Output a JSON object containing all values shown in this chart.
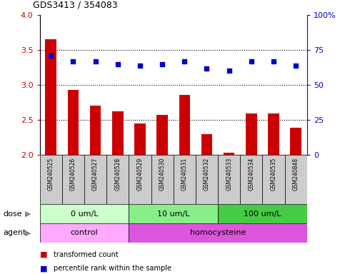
{
  "title": "GDS3413 / 354083",
  "samples": [
    "GSM240525",
    "GSM240526",
    "GSM240527",
    "GSM240528",
    "GSM240529",
    "GSM240530",
    "GSM240531",
    "GSM240532",
    "GSM240533",
    "GSM240534",
    "GSM240535",
    "GSM240848"
  ],
  "bar_values": [
    3.65,
    2.93,
    2.7,
    2.62,
    2.45,
    2.57,
    2.86,
    2.3,
    2.03,
    2.59,
    2.59,
    2.39
  ],
  "scatter_pct": [
    71,
    67,
    67,
    65,
    64,
    65,
    67,
    62,
    60,
    67,
    67,
    64
  ],
  "ylim_left": [
    2.0,
    4.0
  ],
  "ylim_right": [
    0,
    100
  ],
  "yticks_left": [
    2.0,
    2.5,
    3.0,
    3.5,
    4.0
  ],
  "yticks_right": [
    0,
    25,
    50,
    75,
    100
  ],
  "ytick_labels_right": [
    "0",
    "25",
    "50",
    "75",
    "100%"
  ],
  "bar_color": "#cc0000",
  "scatter_color": "#0000cc",
  "bar_bottom": 2.0,
  "hlines": [
    2.5,
    3.0,
    3.5
  ],
  "dose_groups": [
    {
      "label": "0 um/L",
      "start": 0,
      "end": 4,
      "color": "#ccffcc"
    },
    {
      "label": "10 um/L",
      "start": 4,
      "end": 8,
      "color": "#88ee88"
    },
    {
      "label": "100 um/L",
      "start": 8,
      "end": 12,
      "color": "#44cc44"
    }
  ],
  "agent_groups": [
    {
      "label": "control",
      "start": 0,
      "end": 4,
      "color": "#ffaaff"
    },
    {
      "label": "homocysteine",
      "start": 4,
      "end": 12,
      "color": "#dd55dd"
    }
  ],
  "dose_label": "dose",
  "agent_label": "agent",
  "legend_bar_label": "transformed count",
  "legend_scatter_label": "percentile rank within the sample",
  "background_color": "#ffffff",
  "tick_label_color_left": "#cc0000",
  "tick_label_color_right": "#0000cc",
  "sample_bg_color": "#cccccc",
  "title_fontsize": 9,
  "axis_fontsize": 8,
  "sample_fontsize": 5.5,
  "label_fontsize": 8,
  "legend_fontsize": 7
}
